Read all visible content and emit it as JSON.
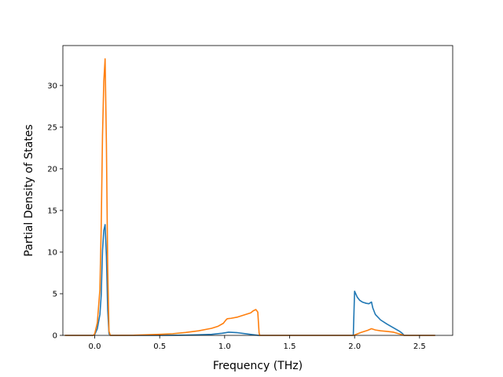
{
  "chart_data": {
    "type": "line",
    "title": "",
    "xlabel": "Frequency (THz)",
    "ylabel": "Partial Density of States",
    "xlim": [
      -0.245,
      2.755
    ],
    "ylim": [
      0,
      34.8
    ],
    "xticks": [
      0.0,
      0.5,
      1.0,
      1.5,
      2.0,
      2.5
    ],
    "xtick_labels": [
      "0.0",
      "0.5",
      "1.0",
      "1.5",
      "2.0",
      "2.5"
    ],
    "yticks": [
      0,
      5,
      10,
      15,
      20,
      25,
      30
    ],
    "ytick_labels": [
      "0",
      "5",
      "10",
      "15",
      "20",
      "25",
      "30"
    ],
    "grid": false,
    "legend": "none",
    "series": [
      {
        "color": "#1f77b4",
        "points": [
          [
            -0.23,
            0.0
          ],
          [
            -0.01,
            0.0
          ],
          [
            0.0,
            0.1
          ],
          [
            0.02,
            0.8
          ],
          [
            0.04,
            2.5
          ],
          [
            0.05,
            4.8
          ],
          [
            0.06,
            10.2
          ],
          [
            0.07,
            12.6
          ],
          [
            0.08,
            13.3
          ],
          [
            0.09,
            9.5
          ],
          [
            0.1,
            3.0
          ],
          [
            0.11,
            0.2
          ],
          [
            0.12,
            0.0
          ],
          [
            0.5,
            0.0
          ],
          [
            0.7,
            0.03
          ],
          [
            0.9,
            0.12
          ],
          [
            0.98,
            0.25
          ],
          [
            1.0,
            0.3
          ],
          [
            1.03,
            0.38
          ],
          [
            1.1,
            0.32
          ],
          [
            1.15,
            0.22
          ],
          [
            1.22,
            0.08
          ],
          [
            1.26,
            0.0
          ],
          [
            1.99,
            0.0
          ],
          [
            2.0,
            5.3
          ],
          [
            2.02,
            4.6
          ],
          [
            2.04,
            4.2
          ],
          [
            2.06,
            4.0
          ],
          [
            2.09,
            3.85
          ],
          [
            2.11,
            3.8
          ],
          [
            2.13,
            4.0
          ],
          [
            2.14,
            3.3
          ],
          [
            2.16,
            2.5
          ],
          [
            2.2,
            1.85
          ],
          [
            2.25,
            1.35
          ],
          [
            2.3,
            0.9
          ],
          [
            2.35,
            0.45
          ],
          [
            2.37,
            0.2
          ],
          [
            2.38,
            0.0
          ],
          [
            2.62,
            0.0
          ]
        ]
      },
      {
        "color": "#ff7f0e",
        "points": [
          [
            -0.23,
            0.0
          ],
          [
            -0.01,
            0.0
          ],
          [
            0.0,
            0.2
          ],
          [
            0.02,
            1.5
          ],
          [
            0.04,
            5.5
          ],
          [
            0.05,
            13.0
          ],
          [
            0.06,
            24.0
          ],
          [
            0.07,
            30.5
          ],
          [
            0.08,
            33.2
          ],
          [
            0.09,
            23.0
          ],
          [
            0.1,
            8.0
          ],
          [
            0.11,
            0.5
          ],
          [
            0.12,
            0.0
          ],
          [
            0.3,
            0.02
          ],
          [
            0.5,
            0.12
          ],
          [
            0.6,
            0.2
          ],
          [
            0.7,
            0.35
          ],
          [
            0.8,
            0.55
          ],
          [
            0.9,
            0.85
          ],
          [
            0.95,
            1.1
          ],
          [
            0.99,
            1.45
          ],
          [
            1.01,
            1.85
          ],
          [
            1.02,
            2.0
          ],
          [
            1.05,
            2.05
          ],
          [
            1.1,
            2.2
          ],
          [
            1.15,
            2.45
          ],
          [
            1.2,
            2.7
          ],
          [
            1.22,
            2.95
          ],
          [
            1.24,
            3.1
          ],
          [
            1.255,
            2.8
          ],
          [
            1.265,
            0.3
          ],
          [
            1.27,
            0.0
          ],
          [
            1.99,
            0.0
          ],
          [
            2.0,
            0.05
          ],
          [
            2.05,
            0.35
          ],
          [
            2.1,
            0.6
          ],
          [
            2.13,
            0.8
          ],
          [
            2.16,
            0.65
          ],
          [
            2.2,
            0.55
          ],
          [
            2.25,
            0.48
          ],
          [
            2.3,
            0.38
          ],
          [
            2.36,
            0.1
          ],
          [
            2.38,
            0.0
          ],
          [
            2.62,
            0.0
          ]
        ]
      }
    ]
  }
}
